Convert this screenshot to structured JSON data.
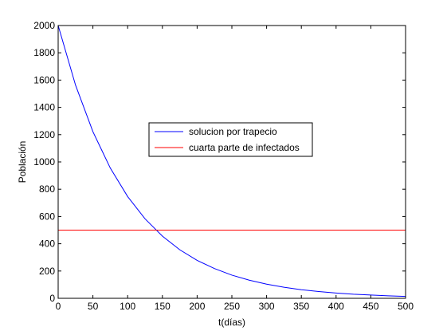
{
  "chart_data": {
    "type": "line",
    "xlabel": "t(días)",
    "ylabel": "Población",
    "xlim": [
      0,
      500
    ],
    "ylim": [
      0,
      2000
    ],
    "xticks": [
      0,
      50,
      100,
      150,
      200,
      250,
      300,
      350,
      400,
      450,
      500
    ],
    "yticks": [
      0,
      200,
      400,
      600,
      800,
      1000,
      1200,
      1400,
      1600,
      1800,
      2000
    ],
    "grid": false,
    "legend_position": "center",
    "series": [
      {
        "name": "solucion por trapecio",
        "color": "#0000ff",
        "x": [
          0,
          25,
          50,
          75,
          100,
          125,
          150,
          175,
          200,
          225,
          250,
          275,
          300,
          325,
          350,
          375,
          400,
          425,
          450,
          475,
          500
        ],
        "y": [
          2000,
          1563,
          1222,
          955,
          746,
          583,
          456,
          356,
          278,
          218,
          170,
          133,
          104,
          81,
          63,
          50,
          39,
          30,
          24,
          18,
          14
        ]
      },
      {
        "name": "cuarta parte de infectados",
        "color": "#ff0000",
        "x": [
          0,
          500
        ],
        "y": [
          500,
          500
        ]
      }
    ]
  }
}
